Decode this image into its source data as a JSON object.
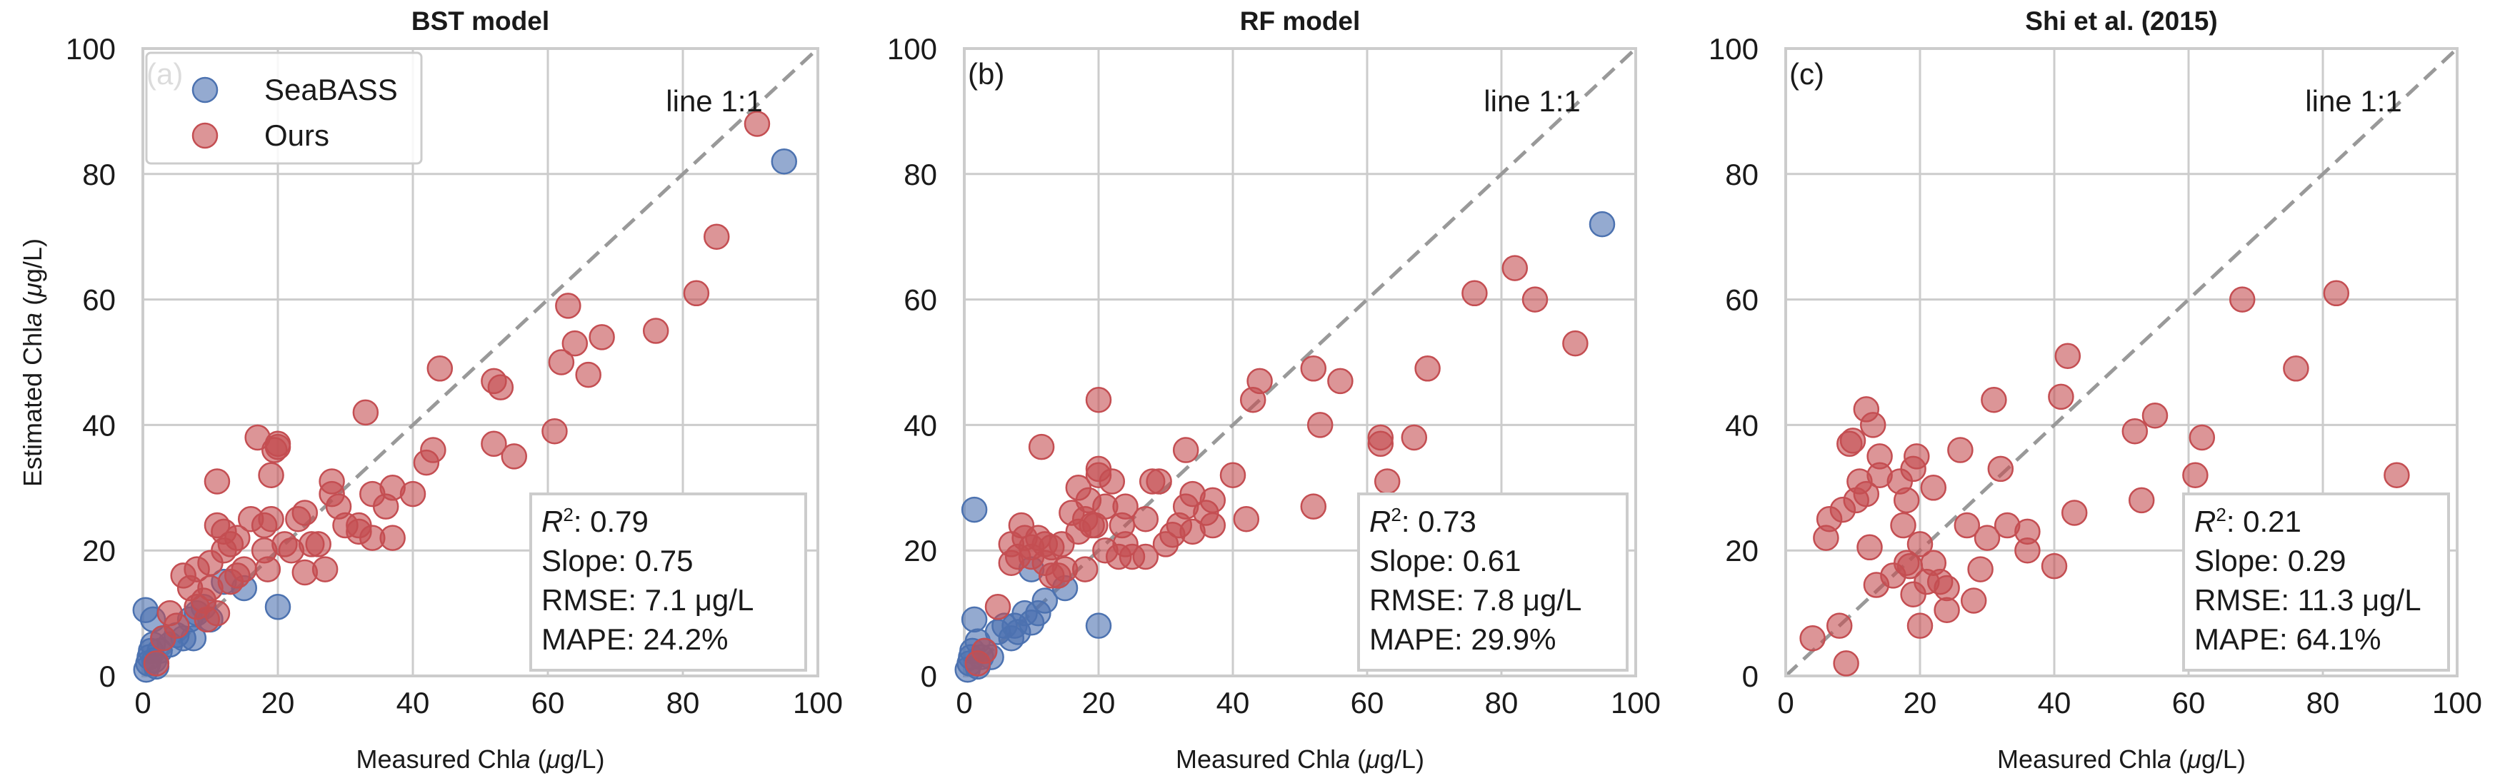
{
  "figure": {
    "ylabel_prefix": "Estimated Chl",
    "ylabel_italic": "a",
    "ylabel_open": " (",
    "ylabel_unit_mu": "μ",
    "ylabel_unit_rest": "g/L)",
    "xlabel_prefix": "Measured Chl",
    "xlabel_italic": "a",
    "xlabel_open": " (",
    "xlabel_unit_mu": "μ",
    "xlabel_unit_rest": "g/L)",
    "line_label": "line 1:1",
    "legend": [
      {
        "label": "SeaBASS",
        "color": "#4c72b0"
      },
      {
        "label": "Ours",
        "color": "#c44e52"
      }
    ],
    "colors": {
      "seabass": "#4c72b0",
      "ours": "#c44e52",
      "grid": "#cccccc",
      "diag": "#999999"
    }
  },
  "chart_data": [
    {
      "type": "scatter",
      "title": "BST model",
      "panel_letter": "(a)",
      "xlim": [
        0,
        100
      ],
      "ylim": [
        0,
        100
      ],
      "xticks": [
        "0",
        "20",
        "40",
        "60",
        "80",
        "100"
      ],
      "yticks": [
        "0",
        "20",
        "40",
        "60",
        "80",
        "100"
      ],
      "grid": true,
      "legend_position": "top-left",
      "stats": {
        "r2_value": ": 0.79",
        "slope": "Slope: 0.75",
        "rmse": "RMSE: 7.1 μg/L",
        "mape": "MAPE: 24.2%"
      },
      "series": [
        {
          "name": "SeaBASS",
          "color": "#4c72b0",
          "points": [
            [
              0.5,
              1
            ],
            [
              0.8,
              2
            ],
            [
              1,
              3
            ],
            [
              1.2,
              4
            ],
            [
              1.5,
              5
            ],
            [
              1.7,
              2.5
            ],
            [
              2,
              1.5
            ],
            [
              0.4,
              10.5
            ],
            [
              1.5,
              9
            ],
            [
              2.5,
              4
            ],
            [
              3,
              6
            ],
            [
              4,
              5
            ],
            [
              5,
              6.5
            ],
            [
              6,
              6
            ],
            [
              7,
              9
            ],
            [
              7.5,
              6
            ],
            [
              8,
              10
            ],
            [
              9,
              11
            ],
            [
              10,
              9
            ],
            [
              12,
              15
            ],
            [
              15,
              14
            ],
            [
              20,
              11
            ],
            [
              95,
              82
            ]
          ]
        },
        {
          "name": "Ours",
          "color": "#c44e52",
          "points": [
            [
              2,
              2
            ],
            [
              3,
              6
            ],
            [
              4,
              10
            ],
            [
              5,
              8
            ],
            [
              6,
              16
            ],
            [
              7,
              14
            ],
            [
              8,
              11
            ],
            [
              8,
              17
            ],
            [
              9,
              12
            ],
            [
              9.5,
              9
            ],
            [
              10,
              14
            ],
            [
              10,
              18
            ],
            [
              11,
              10
            ],
            [
              11,
              24
            ],
            [
              11,
              31
            ],
            [
              12,
              20
            ],
            [
              12,
              23
            ],
            [
              13,
              21
            ],
            [
              13,
              15
            ],
            [
              14,
              22
            ],
            [
              14,
              16
            ],
            [
              15,
              17
            ],
            [
              16,
              25
            ],
            [
              17,
              38
            ],
            [
              18,
              24
            ],
            [
              18,
              20
            ],
            [
              18.5,
              17
            ],
            [
              19,
              32
            ],
            [
              19,
              25
            ],
            [
              19.5,
              36
            ],
            [
              20,
              36.5
            ],
            [
              20,
              37
            ],
            [
              21,
              21
            ],
            [
              22,
              20
            ],
            [
              23,
              25
            ],
            [
              24,
              16.5
            ],
            [
              24,
              26
            ],
            [
              25,
              21
            ],
            [
              26,
              21
            ],
            [
              27,
              17
            ],
            [
              28,
              31
            ],
            [
              28,
              29
            ],
            [
              29,
              27
            ],
            [
              30,
              24
            ],
            [
              32,
              23
            ],
            [
              32,
              24
            ],
            [
              33,
              42
            ],
            [
              34,
              22
            ],
            [
              34,
              29
            ],
            [
              36,
              27
            ],
            [
              37,
              30
            ],
            [
              37,
              22
            ],
            [
              40,
              29
            ],
            [
              42,
              34
            ],
            [
              43,
              36
            ],
            [
              44,
              49
            ],
            [
              52,
              37
            ],
            [
              52,
              47
            ],
            [
              53,
              46
            ],
            [
              55,
              35
            ],
            [
              61,
              39
            ],
            [
              62,
              50
            ],
            [
              63,
              59
            ],
            [
              64,
              53
            ],
            [
              66,
              48
            ],
            [
              68,
              54
            ],
            [
              76,
              55
            ],
            [
              82,
              61
            ],
            [
              85,
              70
            ],
            [
              91,
              88
            ]
          ]
        }
      ]
    },
    {
      "type": "scatter",
      "title": "RF model",
      "panel_letter": "(b)",
      "xlim": [
        0,
        100
      ],
      "ylim": [
        0,
        100
      ],
      "xticks": [
        "0",
        "20",
        "40",
        "60",
        "80",
        "100"
      ],
      "yticks": [
        "0",
        "20",
        "40",
        "60",
        "80",
        "100"
      ],
      "grid": true,
      "legend_position": "none",
      "stats": {
        "r2_value": ": 0.73",
        "slope": "Slope: 0.61",
        "rmse": "RMSE: 7.8 μg/L",
        "mape": "MAPE: 29.9%"
      },
      "series": [
        {
          "name": "SeaBASS",
          "color": "#4c72b0",
          "points": [
            [
              0.5,
              1
            ],
            [
              0.8,
              2
            ],
            [
              1,
              3
            ],
            [
              1.2,
              4
            ],
            [
              1.5,
              26.5
            ],
            [
              1.5,
              9
            ],
            [
              2,
              5.5
            ],
            [
              2,
              1.5
            ],
            [
              2.5,
              3
            ],
            [
              3,
              4
            ],
            [
              4,
              3
            ],
            [
              5,
              7
            ],
            [
              6,
              8
            ],
            [
              7,
              6
            ],
            [
              7.5,
              8
            ],
            [
              8,
              7
            ],
            [
              9,
              10
            ],
            [
              10,
              8.5
            ],
            [
              10,
              17
            ],
            [
              11,
              10
            ],
            [
              12,
              12
            ],
            [
              15,
              14
            ],
            [
              20,
              8
            ],
            [
              95,
              72
            ]
          ]
        },
        {
          "name": "Ours",
          "color": "#c44e52",
          "points": [
            [
              2,
              2
            ],
            [
              3,
              4
            ],
            [
              5,
              11
            ],
            [
              7,
              21
            ],
            [
              7,
              18
            ],
            [
              8,
              19
            ],
            [
              8.5,
              24
            ],
            [
              9,
              22
            ],
            [
              10,
              19
            ],
            [
              10,
              20.5
            ],
            [
              11,
              22
            ],
            [
              11.5,
              36.5
            ],
            [
              12,
              21
            ],
            [
              12,
              18
            ],
            [
              13,
              16
            ],
            [
              13,
              20.5
            ],
            [
              14,
              16
            ],
            [
              14.5,
              21
            ],
            [
              15,
              17
            ],
            [
              16,
              26
            ],
            [
              17,
              30
            ],
            [
              17,
              23
            ],
            [
              18,
              17
            ],
            [
              18,
              25
            ],
            [
              18.5,
              28
            ],
            [
              19,
              24
            ],
            [
              19.5,
              24
            ],
            [
              20,
              32
            ],
            [
              20,
              33
            ],
            [
              20,
              44
            ],
            [
              21,
              20
            ],
            [
              21,
              27
            ],
            [
              22,
              31
            ],
            [
              23,
              19
            ],
            [
              23.5,
              24
            ],
            [
              24,
              21
            ],
            [
              24,
              27
            ],
            [
              25,
              19
            ],
            [
              27,
              19
            ],
            [
              27,
              25
            ],
            [
              28,
              31
            ],
            [
              29,
              31
            ],
            [
              30,
              21
            ],
            [
              31,
              22.5
            ],
            [
              32,
              24
            ],
            [
              33,
              36
            ],
            [
              33,
              27
            ],
            [
              34,
              29
            ],
            [
              34,
              23
            ],
            [
              36,
              26
            ],
            [
              37,
              28
            ],
            [
              37,
              24
            ],
            [
              40,
              32
            ],
            [
              42,
              25
            ],
            [
              43,
              44
            ],
            [
              44,
              47
            ],
            [
              52,
              49
            ],
            [
              52,
              27
            ],
            [
              53,
              40
            ],
            [
              56,
              47
            ],
            [
              62,
              37
            ],
            [
              62,
              38
            ],
            [
              63,
              31
            ],
            [
              67,
              38
            ],
            [
              69,
              49
            ],
            [
              76,
              61
            ],
            [
              82,
              65
            ],
            [
              85,
              60
            ],
            [
              91,
              53
            ]
          ]
        }
      ]
    },
    {
      "type": "scatter",
      "title": "Shi et al. (2015)",
      "panel_letter": "(c)",
      "xlim": [
        0,
        100
      ],
      "ylim": [
        0,
        100
      ],
      "xticks": [
        "0",
        "20",
        "40",
        "60",
        "80",
        "100"
      ],
      "yticks": [
        "0",
        "20",
        "40",
        "60",
        "80",
        "100"
      ],
      "grid": true,
      "legend_position": "none",
      "stats": {
        "r2_value": ": 0.21",
        "slope": "Slope: 0.29",
        "rmse": "RMSE: 11.3 μg/L",
        "mape": "MAPE: 64.1%"
      },
      "series": [
        {
          "name": "Ours",
          "color": "#c44e52",
          "points": [
            [
              4,
              6
            ],
            [
              6,
              22
            ],
            [
              6.5,
              25
            ],
            [
              8,
              8
            ],
            [
              8.5,
              26.5
            ],
            [
              9,
              2
            ],
            [
              9.5,
              37
            ],
            [
              10,
              37.5
            ],
            [
              10.5,
              28
            ],
            [
              11,
              31
            ],
            [
              12,
              42.5
            ],
            [
              12,
              29
            ],
            [
              12.5,
              20.5
            ],
            [
              13,
              40
            ],
            [
              13.5,
              14.5
            ],
            [
              14,
              32
            ],
            [
              14,
              35
            ],
            [
              16,
              16
            ],
            [
              17,
              31
            ],
            [
              17.5,
              24
            ],
            [
              18,
              18
            ],
            [
              18,
              28
            ],
            [
              18.5,
              17.5
            ],
            [
              19,
              13
            ],
            [
              19,
              33
            ],
            [
              19.5,
              35
            ],
            [
              20,
              8
            ],
            [
              20,
              21
            ],
            [
              21,
              15
            ],
            [
              22,
              18
            ],
            [
              22,
              30
            ],
            [
              23,
              15
            ],
            [
              24,
              10.5
            ],
            [
              24,
              14
            ],
            [
              26,
              36
            ],
            [
              27,
              24
            ],
            [
              28,
              12
            ],
            [
              29,
              17
            ],
            [
              30,
              22
            ],
            [
              31,
              44
            ],
            [
              32,
              33
            ],
            [
              33,
              24
            ],
            [
              36,
              23
            ],
            [
              36,
              20
            ],
            [
              40,
              17.5
            ],
            [
              41,
              44.5
            ],
            [
              42,
              51
            ],
            [
              43,
              26
            ],
            [
              52,
              39
            ],
            [
              53,
              28
            ],
            [
              55,
              41.5
            ],
            [
              61,
              32
            ],
            [
              62,
              38
            ],
            [
              68,
              60
            ],
            [
              76,
              49
            ],
            [
              82,
              61
            ],
            [
              91,
              32
            ]
          ]
        }
      ]
    }
  ]
}
